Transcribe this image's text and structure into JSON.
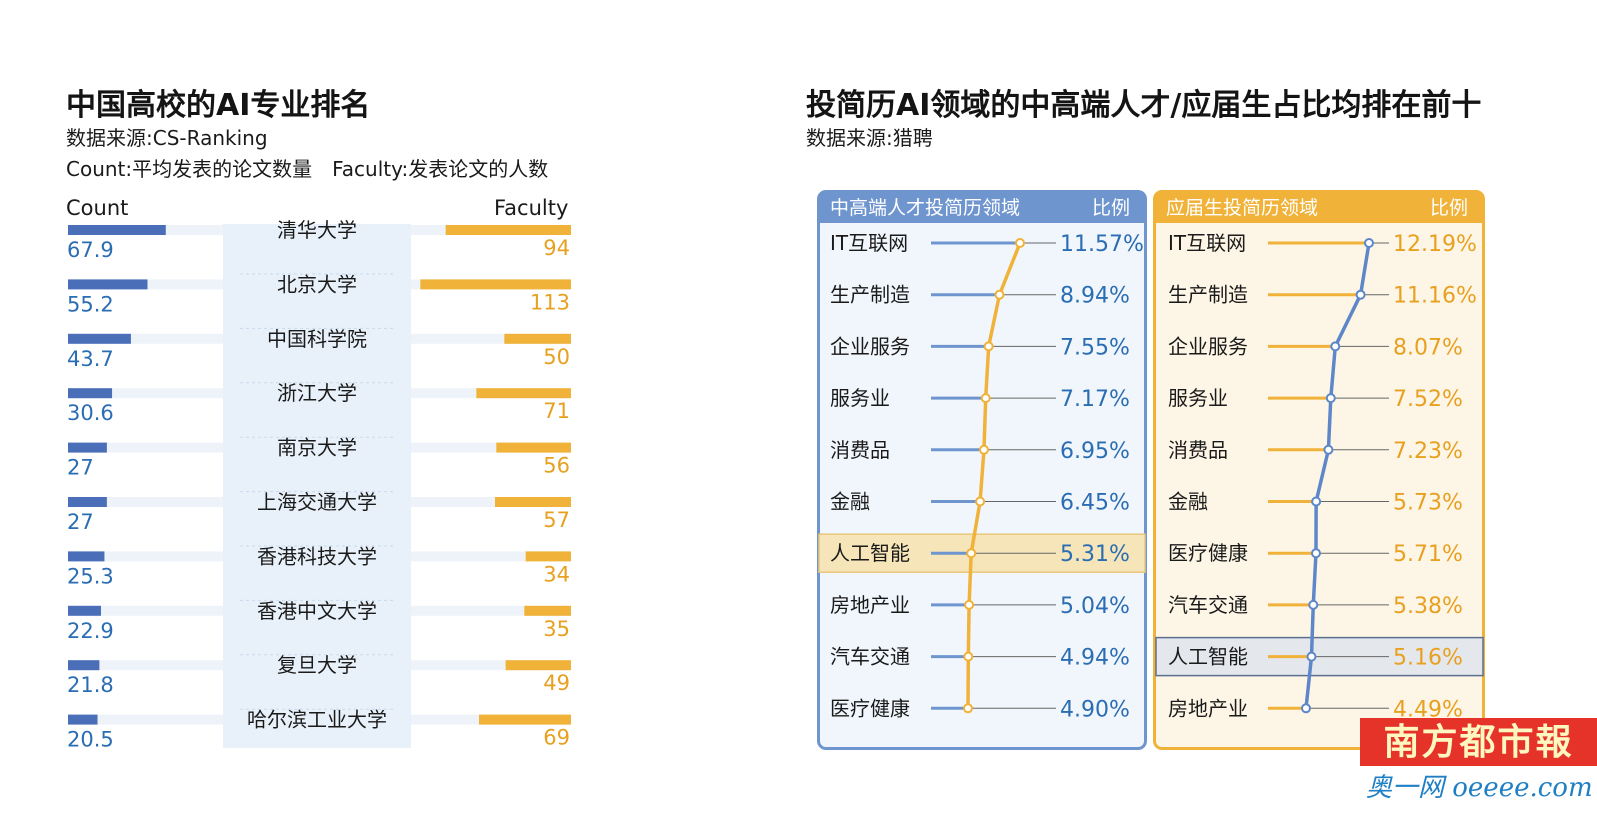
{
  "left": {
    "title": "中国高校的AI专业排名",
    "source": "数据来源:CS-Ranking",
    "legend_note": "Count:平均发表的论文数量　Faculty:发表论文的人数",
    "count_label": "Count",
    "faculty_label": "Faculty"
  },
  "right": {
    "title": "投简历AI领域的中高端人才/应届生占比均排在前十",
    "source": "数据来源:猎聘",
    "panel1": {
      "title": "中高端人才投简历领域",
      "ratio_label": "比例"
    },
    "panel2": {
      "title": "应届生投简历领域",
      "ratio_label": "比例"
    }
  },
  "watermark": {
    "brand": "南方都市報",
    "site": "奥一网 oeeee.com"
  },
  "colors": {
    "blue": "#4a6fb8",
    "orange": "#f0b238",
    "blue_text": "#2a6db3",
    "orange_text": "#e8a020",
    "highlight": "#f6e5b8"
  },
  "chart_data": [
    {
      "type": "bar",
      "title": "中国高校的AI专业排名",
      "categories": [
        "清华大学",
        "北京大学",
        "中国科学院",
        "浙江大学",
        "南京大学",
        "上海交通大学",
        "香港科技大学",
        "香港中文大学",
        "复旦大学",
        "哈尔滨工业大学"
      ],
      "series": [
        {
          "name": "Count",
          "values": [
            67.9,
            55.2,
            43.7,
            30.6,
            27,
            27,
            25.3,
            22.9,
            21.8,
            20.5
          ]
        },
        {
          "name": "Faculty",
          "values": [
            94,
            113,
            50,
            71,
            56,
            57,
            34,
            35,
            49,
            69
          ]
        }
      ]
    },
    {
      "type": "line",
      "title": "中高端人才投简历领域",
      "categories": [
        "IT互联网",
        "生产制造",
        "企业服务",
        "服务业",
        "消费品",
        "金融",
        "人工智能",
        "房地产业",
        "汽车交通",
        "医疗健康"
      ],
      "labels": [
        "11.57%",
        "8.94%",
        "7.55%",
        "7.17%",
        "6.95%",
        "6.45%",
        "5.31%",
        "5.04%",
        "4.94%",
        "4.90%"
      ],
      "values": [
        11.57,
        8.94,
        7.55,
        7.17,
        6.95,
        6.45,
        5.31,
        5.04,
        4.94,
        4.9
      ],
      "highlight": "人工智能"
    },
    {
      "type": "line",
      "title": "应届生投简历领域",
      "categories": [
        "IT互联网",
        "生产制造",
        "企业服务",
        "服务业",
        "消费品",
        "金融",
        "医疗健康",
        "汽车交通",
        "人工智能",
        "房地产业"
      ],
      "labels": [
        "12.19%",
        "11.16%",
        "8.07%",
        "7.52%",
        "7.23%",
        "5.73%",
        "5.71%",
        "5.38%",
        "5.16%",
        "4.49%"
      ],
      "values": [
        12.19,
        11.16,
        8.07,
        7.52,
        7.23,
        5.73,
        5.71,
        5.38,
        5.16,
        4.49
      ],
      "highlight": "人工智能"
    }
  ]
}
